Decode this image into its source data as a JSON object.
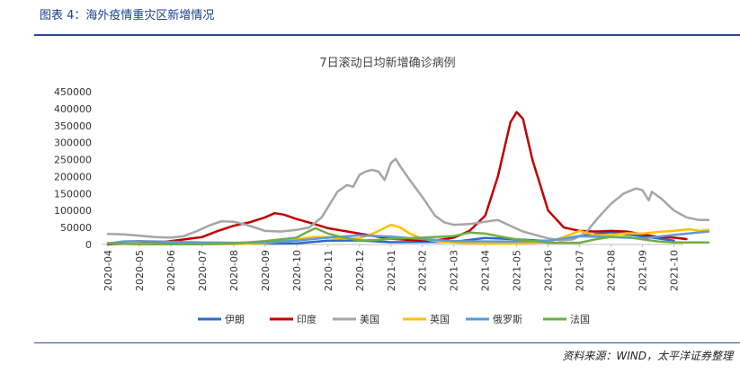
{
  "header": {
    "title": "图表 4：海外疫情重灾区新增情况"
  },
  "footer": {
    "source": "资料来源：WIND，太平洋证券整理"
  },
  "colors": {
    "header_text": "#1a3f8f",
    "rule": "#2b4a9b"
  },
  "chart_data": {
    "type": "line",
    "title": "7日滚动日均新增确诊病例",
    "xlabel": "",
    "ylabel": "",
    "ylim": [
      0,
      450000
    ],
    "yticks": [
      0,
      50000,
      100000,
      150000,
      200000,
      250000,
      300000,
      350000,
      400000,
      450000
    ],
    "ytick_labels": [
      "0",
      "50000",
      "100000",
      "150000",
      "200000",
      "250000",
      "300000",
      "350000",
      "400000",
      "450000"
    ],
    "x": [
      "2020-04",
      "2020-05",
      "2020-06",
      "2020-07",
      "2020-08",
      "2020-09",
      "2020-10",
      "2020-11",
      "2020-12",
      "2021-01",
      "2021-02",
      "2021-03",
      "2021-04",
      "2021-05",
      "2021-06",
      "2021-07",
      "2021-08",
      "2021-09",
      "2021-10"
    ],
    "grid": false,
    "legend_position": "bottom",
    "series": [
      {
        "name": "伊朗",
        "color": "#2e6bc2",
        "points": [
          [
            0,
            2000
          ],
          [
            1,
            1500
          ],
          [
            2,
            2500
          ],
          [
            3,
            2500
          ],
          [
            4,
            2300
          ],
          [
            5,
            2500
          ],
          [
            6,
            3500
          ],
          [
            7,
            11000
          ],
          [
            8,
            12000
          ],
          [
            9,
            6500
          ],
          [
            10,
            7500
          ],
          [
            11,
            8000
          ],
          [
            12,
            19000
          ],
          [
            13,
            15000
          ],
          [
            14,
            10000
          ],
          [
            15,
            25000
          ],
          [
            16,
            36000
          ],
          [
            17,
            24000
          ],
          [
            18,
            11000
          ]
        ]
      },
      {
        "name": "印度",
        "color": "#c00000",
        "points": [
          [
            0,
            800
          ],
          [
            1,
            3000
          ],
          [
            1.5,
            5000
          ],
          [
            2,
            10000
          ],
          [
            2.5,
            16000
          ],
          [
            3,
            22000
          ],
          [
            3.5,
            40000
          ],
          [
            4,
            55000
          ],
          [
            4.5,
            65000
          ],
          [
            5,
            80000
          ],
          [
            5.3,
            92000
          ],
          [
            5.6,
            88000
          ],
          [
            6,
            75000
          ],
          [
            6.5,
            62000
          ],
          [
            7,
            48000
          ],
          [
            7.5,
            40000
          ],
          [
            8,
            32000
          ],
          [
            8.5,
            24000
          ],
          [
            9,
            17000
          ],
          [
            9.5,
            14000
          ],
          [
            10,
            11000
          ],
          [
            10.5,
            13000
          ],
          [
            11,
            20000
          ],
          [
            11.5,
            40000
          ],
          [
            12,
            85000
          ],
          [
            12.4,
            200000
          ],
          [
            12.8,
            360000
          ],
          [
            13,
            390000
          ],
          [
            13.2,
            370000
          ],
          [
            13.5,
            250000
          ],
          [
            14,
            100000
          ],
          [
            14.5,
            50000
          ],
          [
            15,
            40000
          ],
          [
            15.5,
            38000
          ],
          [
            16,
            40000
          ],
          [
            16.5,
            38000
          ],
          [
            17,
            30000
          ],
          [
            17.5,
            22000
          ],
          [
            18,
            20000
          ],
          [
            18.4,
            16000
          ]
        ]
      },
      {
        "name": "美国",
        "color": "#a5a5a5",
        "points": [
          [
            0,
            31000
          ],
          [
            0.5,
            30000
          ],
          [
            1,
            26000
          ],
          [
            1.5,
            22000
          ],
          [
            2,
            20000
          ],
          [
            2.4,
            24000
          ],
          [
            2.8,
            38000
          ],
          [
            3.2,
            55000
          ],
          [
            3.6,
            68000
          ],
          [
            4,
            67000
          ],
          [
            4.4,
            58000
          ],
          [
            4.8,
            46000
          ],
          [
            5,
            40000
          ],
          [
            5.5,
            38000
          ],
          [
            6,
            43000
          ],
          [
            6.4,
            50000
          ],
          [
            6.8,
            80000
          ],
          [
            7,
            110000
          ],
          [
            7.3,
            155000
          ],
          [
            7.6,
            175000
          ],
          [
            7.8,
            170000
          ],
          [
            8,
            205000
          ],
          [
            8.2,
            215000
          ],
          [
            8.4,
            220000
          ],
          [
            8.6,
            215000
          ],
          [
            8.8,
            190000
          ],
          [
            9,
            240000
          ],
          [
            9.15,
            252000
          ],
          [
            9.3,
            230000
          ],
          [
            9.6,
            190000
          ],
          [
            10,
            140000
          ],
          [
            10.4,
            85000
          ],
          [
            10.7,
            65000
          ],
          [
            11,
            58000
          ],
          [
            11.5,
            60000
          ],
          [
            12,
            67000
          ],
          [
            12.4,
            72000
          ],
          [
            12.8,
            55000
          ],
          [
            13.2,
            38000
          ],
          [
            13.6,
            28000
          ],
          [
            14,
            18000
          ],
          [
            14.4,
            12000
          ],
          [
            14.8,
            15000
          ],
          [
            15.2,
            35000
          ],
          [
            15.6,
            80000
          ],
          [
            16,
            120000
          ],
          [
            16.4,
            150000
          ],
          [
            16.8,
            165000
          ],
          [
            17,
            160000
          ],
          [
            17.2,
            130000
          ],
          [
            17.3,
            155000
          ],
          [
            17.6,
            135000
          ],
          [
            18,
            100000
          ],
          [
            18.4,
            80000
          ],
          [
            18.8,
            72000
          ],
          [
            19.1,
            72000
          ]
        ]
      },
      {
        "name": "英国",
        "color": "#ffc000",
        "points": [
          [
            0,
            4500
          ],
          [
            1,
            2500
          ],
          [
            2,
            1000
          ],
          [
            3,
            700
          ],
          [
            4,
            1000
          ],
          [
            5,
            3500
          ],
          [
            6,
            15000
          ],
          [
            6.5,
            22000
          ],
          [
            7,
            22000
          ],
          [
            7.5,
            17000
          ],
          [
            8,
            18000
          ],
          [
            8.5,
            35000
          ],
          [
            9,
            58000
          ],
          [
            9.3,
            50000
          ],
          [
            9.6,
            32000
          ],
          [
            10,
            17000
          ],
          [
            10.5,
            9000
          ],
          [
            11,
            5500
          ],
          [
            12,
            2500
          ],
          [
            13,
            2500
          ],
          [
            14,
            7000
          ],
          [
            14.5,
            22000
          ],
          [
            15,
            40000
          ],
          [
            15.5,
            27000
          ],
          [
            16,
            28000
          ],
          [
            16.5,
            33000
          ],
          [
            17,
            32000
          ],
          [
            17.5,
            37000
          ],
          [
            18,
            40000
          ],
          [
            18.5,
            45000
          ],
          [
            18.8,
            40000
          ],
          [
            19.1,
            43000
          ]
        ]
      },
      {
        "name": "俄罗斯",
        "color": "#5b9bd5",
        "points": [
          [
            0,
            3000
          ],
          [
            0.5,
            9000
          ],
          [
            1,
            10000
          ],
          [
            2,
            8000
          ],
          [
            3,
            6000
          ],
          [
            4,
            5000
          ],
          [
            5,
            5500
          ],
          [
            6,
            11000
          ],
          [
            7,
            20000
          ],
          [
            8,
            27000
          ],
          [
            9,
            23000
          ],
          [
            10,
            16000
          ],
          [
            11,
            10000
          ],
          [
            12,
            9000
          ],
          [
            13,
            8500
          ],
          [
            14,
            11000
          ],
          [
            15,
            24000
          ],
          [
            16,
            22000
          ],
          [
            17,
            18000
          ],
          [
            18,
            28000
          ],
          [
            19.1,
            38000
          ]
        ]
      },
      {
        "name": "法国",
        "color": "#70ad47",
        "points": [
          [
            0,
            3000
          ],
          [
            1,
            700
          ],
          [
            2,
            500
          ],
          [
            3,
            600
          ],
          [
            4,
            3000
          ],
          [
            5,
            10000
          ],
          [
            6,
            20000
          ],
          [
            6.3,
            35000
          ],
          [
            6.6,
            48000
          ],
          [
            7,
            32000
          ],
          [
            7.5,
            20000
          ],
          [
            8,
            12000
          ],
          [
            8.5,
            13000
          ],
          [
            9,
            17000
          ],
          [
            10,
            20000
          ],
          [
            11,
            25000
          ],
          [
            11.5,
            35000
          ],
          [
            12,
            32000
          ],
          [
            12.5,
            23000
          ],
          [
            13,
            15000
          ],
          [
            14,
            5000
          ],
          [
            15,
            5000
          ],
          [
            15.5,
            15000
          ],
          [
            16,
            22000
          ],
          [
            16.5,
            22000
          ],
          [
            17,
            15000
          ],
          [
            17.5,
            9000
          ],
          [
            18,
            6000
          ],
          [
            19.1,
            6000
          ]
        ]
      }
    ]
  }
}
